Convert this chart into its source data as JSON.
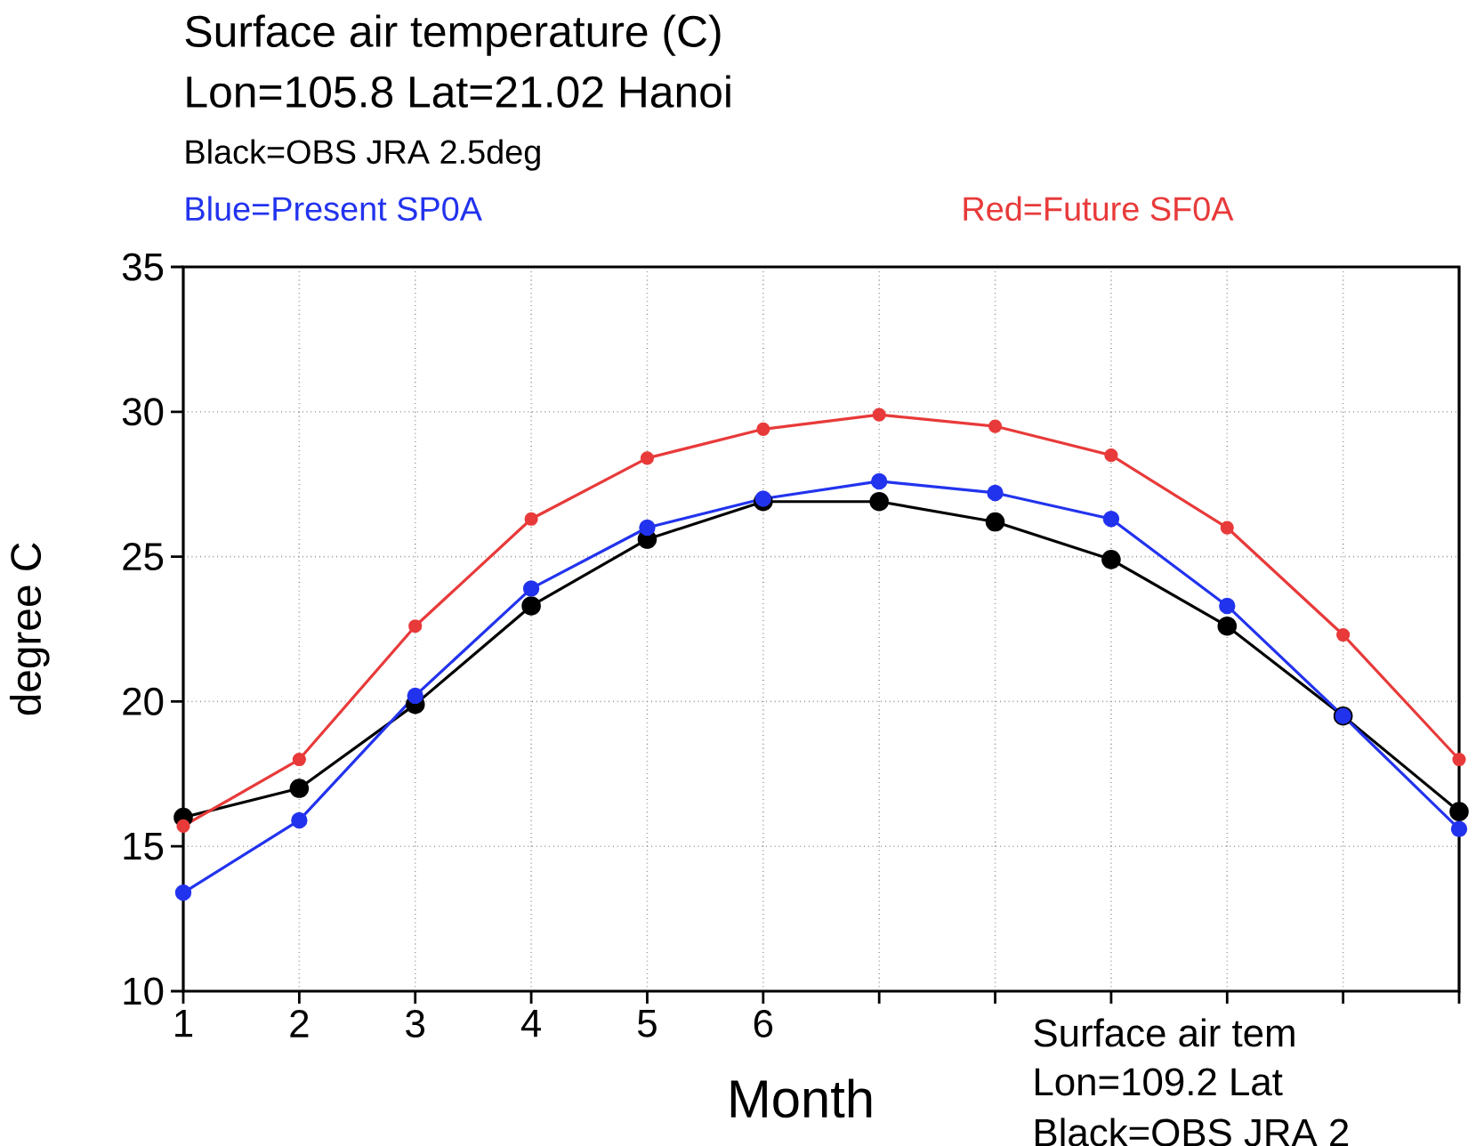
{
  "chart_data": {
    "type": "line",
    "title": "Surface air temperature (C)",
    "subtitle": "Lon=105.8  Lat=21.02  Hanoi",
    "xlabel": "Month",
    "ylabel": "degree C",
    "x": [
      1,
      2,
      3,
      4,
      5,
      6,
      7,
      8,
      9,
      10,
      11,
      12
    ],
    "series": [
      {
        "name": "Black=OBS JRA 2.5deg",
        "color": "#000000",
        "values": [
          16.0,
          17.0,
          19.9,
          23.3,
          25.6,
          26.9,
          26.9,
          26.2,
          24.9,
          22.6,
          19.5,
          16.2
        ]
      },
      {
        "name": "Blue=Present SP0A",
        "color": "#2233ee",
        "values": [
          13.4,
          15.9,
          20.2,
          23.9,
          26.0,
          27.0,
          27.6,
          27.2,
          26.3,
          23.3,
          19.5,
          15.6
        ]
      },
      {
        "name": "Red=Future SF0A",
        "color": "#e83a3a",
        "values": [
          15.7,
          18.0,
          22.6,
          26.3,
          28.4,
          29.4,
          29.9,
          29.5,
          28.5,
          26.0,
          22.3,
          18.0
        ]
      }
    ],
    "xlim": [
      1,
      12
    ],
    "ylim": [
      10,
      35
    ],
    "xticks": [
      1,
      2,
      3,
      4,
      5,
      6,
      {
        "value": 7,
        "label": null
      },
      {
        "value": 8,
        "label": null
      },
      {
        "value": 9,
        "label": null
      },
      {
        "value": 10,
        "label": null
      },
      {
        "value": 11,
        "label": null
      },
      {
        "value": 12,
        "label": null
      }
    ],
    "yticks": [
      10,
      15,
      20,
      25,
      30,
      35
    ],
    "grid": true,
    "marker": "circle",
    "annotations": [
      "Surface air tem",
      "Lon=109.2  Lat",
      "Black=OBS JRA 2"
    ]
  }
}
